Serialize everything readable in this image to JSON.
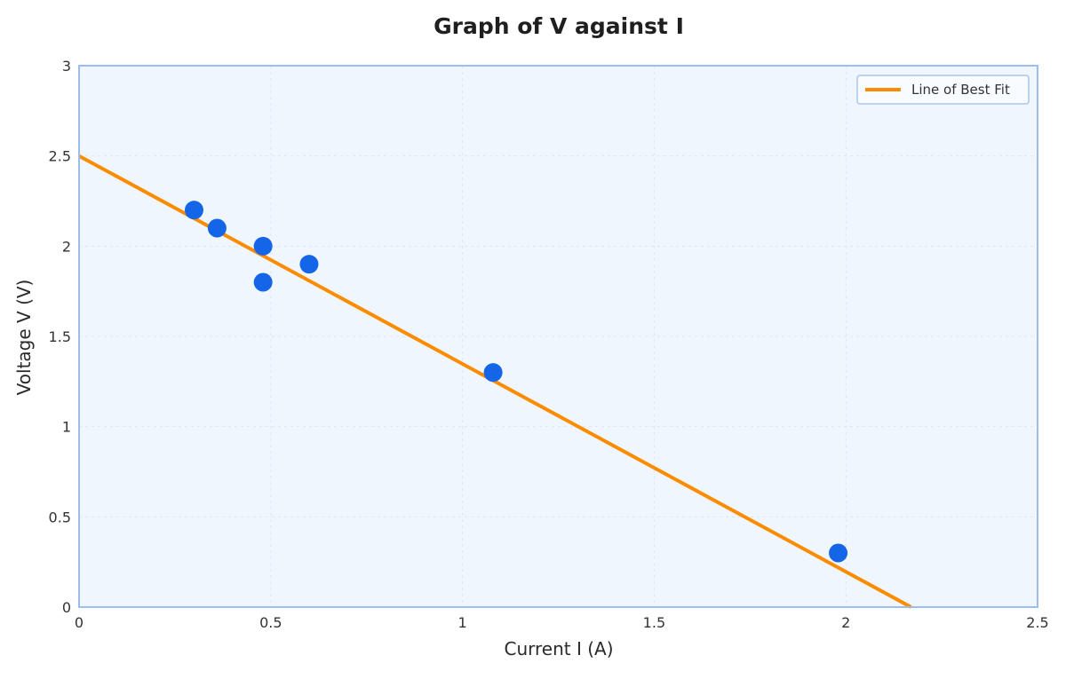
{
  "chart_data": {
    "type": "scatter",
    "title": "Graph of V against I",
    "xlabel": "Current I (A)",
    "ylabel": "Voltage V (V)",
    "xlim": [
      0,
      2.5
    ],
    "ylim": [
      0,
      3
    ],
    "x_ticks": [
      0,
      0.5,
      1,
      1.5,
      2,
      2.5
    ],
    "y_ticks": [
      0,
      0.5,
      1,
      1.5,
      2,
      2.5,
      3
    ],
    "x_tick_labels": [
      "0",
      "0.5",
      "1",
      "1.5",
      "2",
      "2.5"
    ],
    "y_tick_labels": [
      "0",
      "0.5",
      "1",
      "1.5",
      "2",
      "2.5",
      "3"
    ],
    "grid": true,
    "legend_position": "top-right",
    "series": [
      {
        "kind": "scatter",
        "color": "#1565e8",
        "points": [
          {
            "x": 0.3,
            "y": 2.2
          },
          {
            "x": 0.36,
            "y": 2.1
          },
          {
            "x": 0.48,
            "y": 2.0
          },
          {
            "x": 0.48,
            "y": 1.8
          },
          {
            "x": 0.6,
            "y": 1.9
          },
          {
            "x": 1.08,
            "y": 1.3
          },
          {
            "x": 1.98,
            "y": 0.3
          }
        ]
      },
      {
        "kind": "line",
        "name": "Line of Best Fit",
        "color": "#fb8c00",
        "points": [
          {
            "x": 0,
            "y": 2.5
          },
          {
            "x": 2.17,
            "y": 0
          }
        ]
      }
    ],
    "colors": {
      "plot_background": "#f0f6fd",
      "plot_border": "#9dbdf0",
      "grid": "#dce6f2"
    }
  }
}
